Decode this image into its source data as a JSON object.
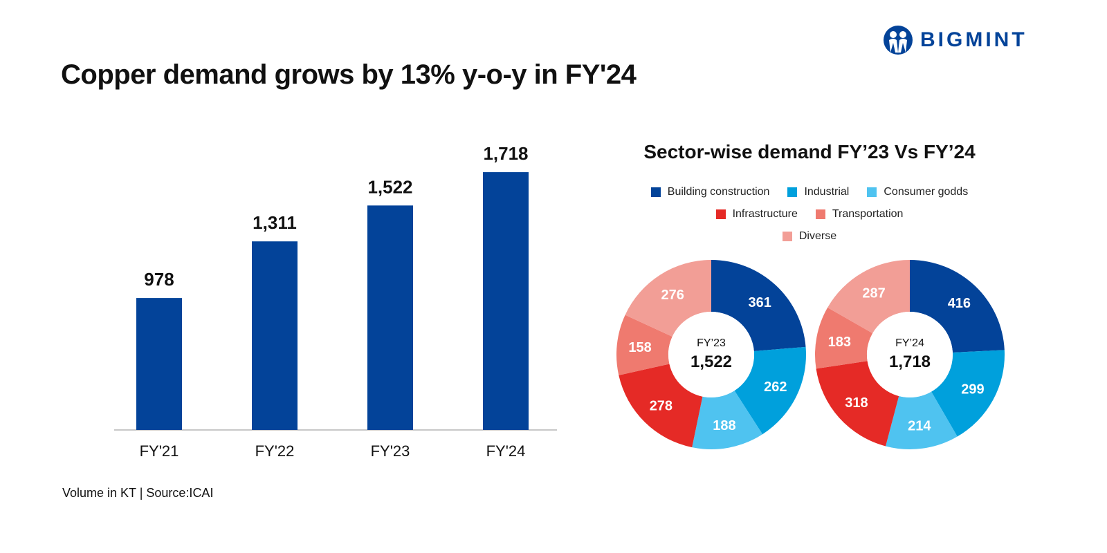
{
  "title": "Copper demand grows by 13% y-o-y in FY'24",
  "logo": {
    "text": "BIGMINT",
    "color": "#034399"
  },
  "source": "Volume in KT | Source:ICAI",
  "chart_data": [
    {
      "type": "bar",
      "categories": [
        "FY'21",
        "FY'22",
        "FY'23",
        "FY'24"
      ],
      "values": [
        978,
        1311,
        1522,
        1718
      ],
      "data_labels": [
        "978",
        "1,311",
        "1,522",
        "1,718"
      ],
      "color": "#034399",
      "grid": false
    },
    {
      "type": "pie",
      "title": "Sector-wise demand FY’23 Vs FY’24",
      "legend": [
        {
          "label": "Building construction",
          "color": "#034399"
        },
        {
          "label": "Industrial",
          "color": "#00a0dc"
        },
        {
          "label": "Consumer godds",
          "color": "#4fc3f0"
        },
        {
          "label": "Infrastructure",
          "color": "#e52a26"
        },
        {
          "label": "Transportation",
          "color": "#ef7a6f"
        },
        {
          "label": "Diverse",
          "color": "#f29e96"
        }
      ],
      "legend_placement": "top",
      "donuts": [
        {
          "center_label": "FY’23",
          "center_value": "1,522",
          "values": [
            361,
            262,
            188,
            278,
            158,
            276
          ]
        },
        {
          "center_label": "FY’24",
          "center_value": "1,718",
          "values": [
            416,
            299,
            214,
            318,
            183,
            287
          ]
        }
      ]
    }
  ]
}
